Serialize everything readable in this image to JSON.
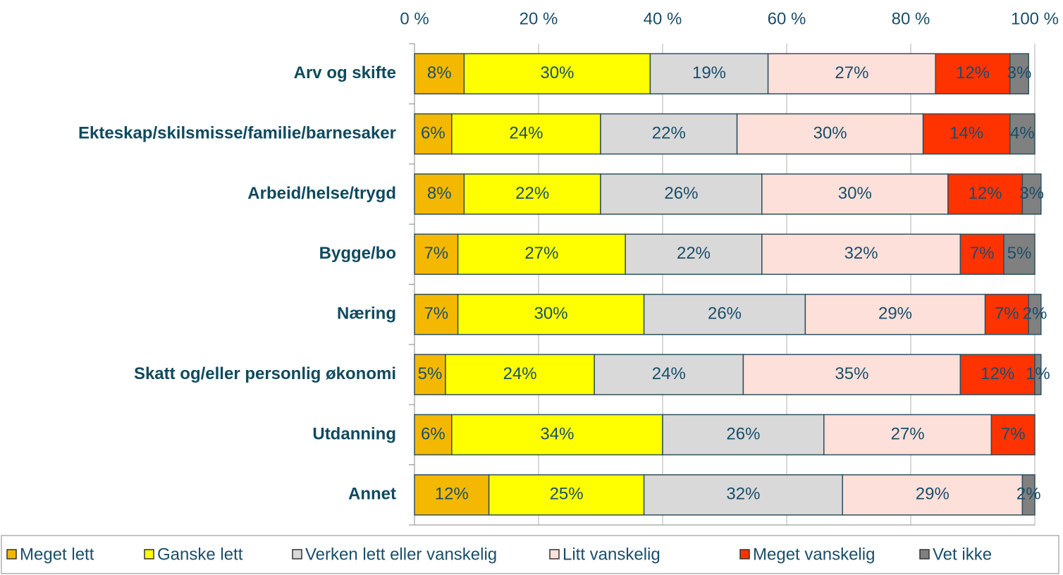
{
  "chart_data": {
    "type": "stacked-bar-horizontal",
    "categories": [
      "Arv og skifte",
      "Ekteskap/skilsmisse/familie/barnesaker",
      "Arbeid/helse/trygd",
      "Bygge/bo",
      "Næring",
      "Skatt og/eller personlig økonomi",
      "Utdanning",
      "Annet"
    ],
    "series": [
      {
        "name": "Meget lett",
        "color": "#f5b800",
        "values": [
          8,
          6,
          8,
          7,
          7,
          5,
          6,
          12
        ],
        "value_labels": [
          "8%",
          "6%",
          "8%",
          "7%",
          "7%",
          "5%",
          "6%",
          "12%"
        ]
      },
      {
        "name": "Ganske lett",
        "color": "#ffff00",
        "values": [
          30,
          24,
          22,
          27,
          30,
          24,
          34,
          25
        ],
        "value_labels": [
          "30%",
          "24%",
          "22%",
          "27%",
          "30%",
          "24%",
          "34%",
          "25%"
        ]
      },
      {
        "name": "Verken lett eller vanskelig",
        "color": "#d9d9d9",
        "values": [
          19,
          22,
          26,
          22,
          26,
          24,
          26,
          32
        ],
        "value_labels": [
          "19%",
          "22%",
          "26%",
          "22%",
          "26%",
          "24%",
          "26%",
          "32%"
        ]
      },
      {
        "name": "Litt vanskelig",
        "color": "#fde0d9",
        "values": [
          27,
          30,
          30,
          32,
          29,
          35,
          27,
          29
        ],
        "value_labels": [
          "27%",
          "30%",
          "30%",
          "32%",
          "29%",
          "35%",
          "27%",
          "29%"
        ]
      },
      {
        "name": "Meget vanskelig",
        "color": "#ff3300",
        "values": [
          12,
          14,
          12,
          7,
          7,
          12,
          7,
          null
        ],
        "value_labels": [
          "12%",
          "14%",
          "12%",
          "7%",
          "7%",
          "12%",
          "7%",
          null
        ]
      },
      {
        "name": "Vet ikke",
        "color": "#808080",
        "values": [
          3,
          4,
          3,
          5,
          2,
          1,
          null,
          2
        ],
        "value_labels": [
          "3%",
          "4%",
          "3%",
          "5%",
          "2%",
          "1%",
          null,
          "2%"
        ]
      }
    ],
    "xlim": [
      0,
      100
    ],
    "xticks": [
      {
        "value": 0,
        "label": "0 %"
      },
      {
        "value": 20,
        "label": "20 %"
      },
      {
        "value": 40,
        "label": "40 %"
      },
      {
        "value": 60,
        "label": "60 %"
      },
      {
        "value": 80,
        "label": "80 %"
      },
      {
        "value": 100,
        "label": "100 %"
      }
    ],
    "grid": true,
    "legend": "bottom"
  }
}
